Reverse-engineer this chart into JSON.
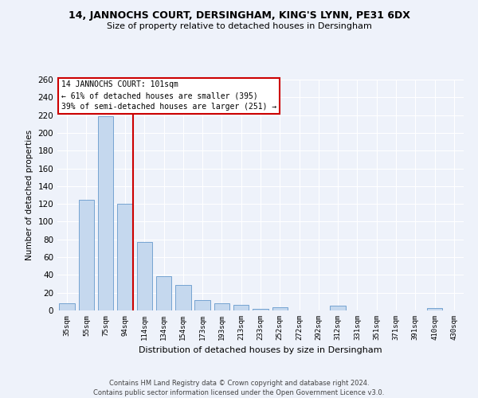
{
  "title1": "14, JANNOCHS COURT, DERSINGHAM, KING'S LYNN, PE31 6DX",
  "title2": "Size of property relative to detached houses in Dersingham",
  "xlabel": "Distribution of detached houses by size in Dersingham",
  "ylabel": "Number of detached properties",
  "footer1": "Contains HM Land Registry data © Crown copyright and database right 2024.",
  "footer2": "Contains public sector information licensed under the Open Government Licence v3.0.",
  "annotation_line1": "14 JANNOCHS COURT: 101sqm",
  "annotation_line2": "← 61% of detached houses are smaller (395)",
  "annotation_line3": "39% of semi-detached houses are larger (251) →",
  "bar_color": "#c5d8ee",
  "bar_edge_color": "#6699cc",
  "categories": [
    "35sqm",
    "55sqm",
    "75sqm",
    "94sqm",
    "114sqm",
    "134sqm",
    "154sqm",
    "173sqm",
    "193sqm",
    "213sqm",
    "233sqm",
    "252sqm",
    "272sqm",
    "292sqm",
    "312sqm",
    "331sqm",
    "351sqm",
    "371sqm",
    "391sqm",
    "410sqm",
    "430sqm"
  ],
  "values": [
    8,
    125,
    219,
    120,
    77,
    39,
    29,
    12,
    8,
    6,
    2,
    4,
    0,
    0,
    5,
    0,
    0,
    0,
    0,
    3,
    0
  ],
  "ylim": [
    0,
    260
  ],
  "yticks": [
    0,
    20,
    40,
    60,
    80,
    100,
    120,
    140,
    160,
    180,
    200,
    220,
    240,
    260
  ],
  "background_color": "#eef2fa",
  "grid_color": "#ffffff",
  "annotation_box_color": "#ffffff",
  "annotation_box_edge": "#cc0000",
  "red_line_color": "#cc0000"
}
